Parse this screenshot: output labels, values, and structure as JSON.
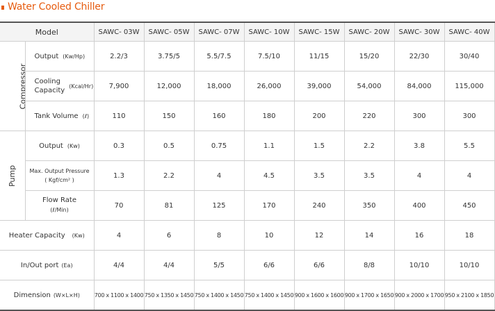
{
  "title": "Water Cooled Chiller",
  "header": {
    "model_label": "Model",
    "models": [
      "SAWC- 03W",
      "SAWC- 05W",
      "SAWC- 07W",
      "SAWC- 10W",
      "SAWC- 15W",
      "SAWC- 20W",
      "SAWC- 30W",
      "SAWC- 40W"
    ]
  },
  "groups": {
    "compressor": "Compressor",
    "pump": "Pump"
  },
  "rows": {
    "output": {
      "label": "Output",
      "unit": "(Kw/Hp)",
      "values": [
        "2.2/3",
        "3.75/5",
        "5.5/7.5",
        "7.5/10",
        "11/15",
        "15/20",
        "22/30",
        "30/40"
      ]
    },
    "cooling": {
      "label_line1": "Cooling",
      "label_line2": "Capacity",
      "unit": "(Kcal/Hr)",
      "values": [
        "7,900",
        "12,000",
        "18,000",
        "26,000",
        "39,000",
        "54,000",
        "84,000",
        "115,000"
      ]
    },
    "tank": {
      "label": "Tank Volume",
      "unit": "(ℓ)",
      "values": [
        "110",
        "150",
        "160",
        "180",
        "200",
        "220",
        "300",
        "300"
      ]
    },
    "pump_output": {
      "label": "Output",
      "unit": "(Kw)",
      "values": [
        "0.3",
        "0.5",
        "0.75",
        "1.1",
        "1.5",
        "2.2",
        "3.8",
        "5.5"
      ]
    },
    "max_pressure": {
      "label_line1": "Max. Output Pressure",
      "label_line2": "( Kgf/cm² )",
      "values": [
        "1.3",
        "2.2",
        "4",
        "4.5",
        "3.5",
        "3.5",
        "4",
        "4"
      ]
    },
    "flow": {
      "label_line1": "Flow Rate",
      "label_line2": "(ℓ/Min)",
      "values": [
        "70",
        "81",
        "125",
        "170",
        "240",
        "350",
        "400",
        "450"
      ]
    },
    "heater": {
      "label": "Heater Capacity",
      "unit": "(Kw)",
      "values": [
        "4",
        "6",
        "8",
        "10",
        "12",
        "14",
        "16",
        "18"
      ]
    },
    "inout": {
      "label": "In/Out port",
      "unit": "(Ea)",
      "values": [
        "4/4",
        "4/4",
        "5/5",
        "6/6",
        "6/6",
        "8/8",
        "10/10",
        "10/10"
      ]
    },
    "dimension": {
      "label": "Dimension",
      "unit": "(W×L×H)",
      "values": [
        "700 x 1100 x 1400",
        "750 x 1350 x 1450",
        "750 x 1400 x 1450",
        "750 x 1400 x 1450",
        "900 x 1600 x 1600",
        "900 x 1700 x 1650",
        "900 x 2000 x 1700",
        "950 x 2100 x 1850"
      ]
    }
  },
  "colors": {
    "accent": "#e65c10",
    "header_bg": "#f4f4f4",
    "border": "#cfcfcf"
  }
}
